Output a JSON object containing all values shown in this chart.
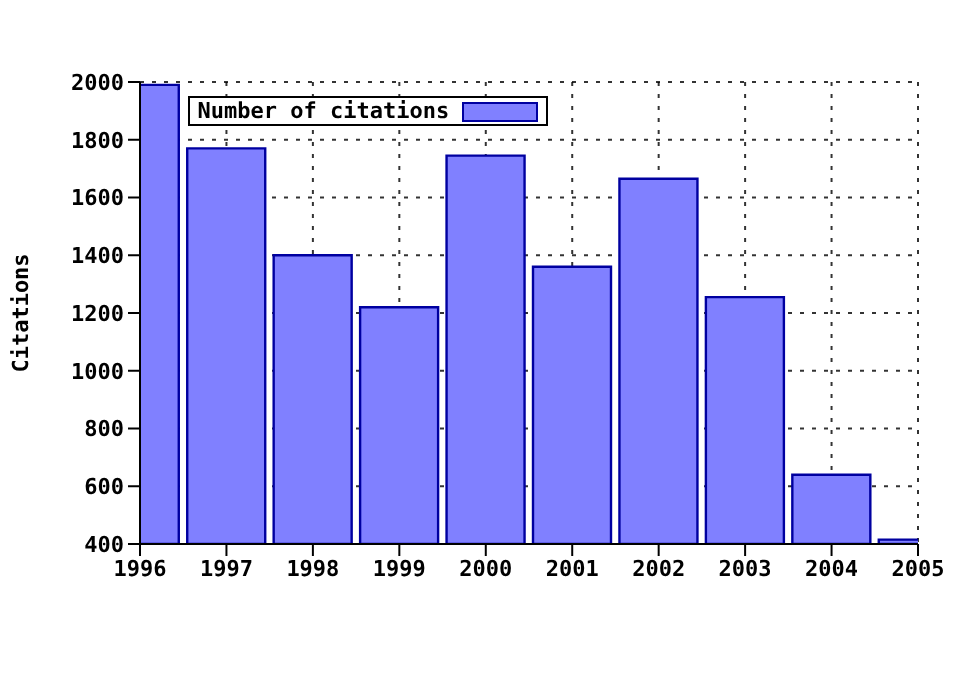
{
  "chart_data": {
    "type": "bar",
    "ylabel": "Citations",
    "x": [
      1996,
      1997,
      1998,
      1999,
      2000,
      2001,
      2002,
      2003,
      2004,
      2005
    ],
    "series": [
      {
        "name": "Number of citations",
        "color": "#8080ff",
        "values": [
          1990,
          1770,
          1400,
          1220,
          1745,
          1360,
          1665,
          1255,
          640,
          415
        ]
      }
    ],
    "xlim": [
      1996,
      2005
    ],
    "xticks": [
      1996,
      1997,
      1998,
      1999,
      2000,
      2001,
      2002,
      2003,
      2004,
      2005
    ],
    "ylim": [
      400,
      2000
    ],
    "yticks": [
      400,
      600,
      800,
      1000,
      1200,
      1400,
      1600,
      1800,
      2000
    ],
    "grid": true,
    "legend": "top left"
  }
}
